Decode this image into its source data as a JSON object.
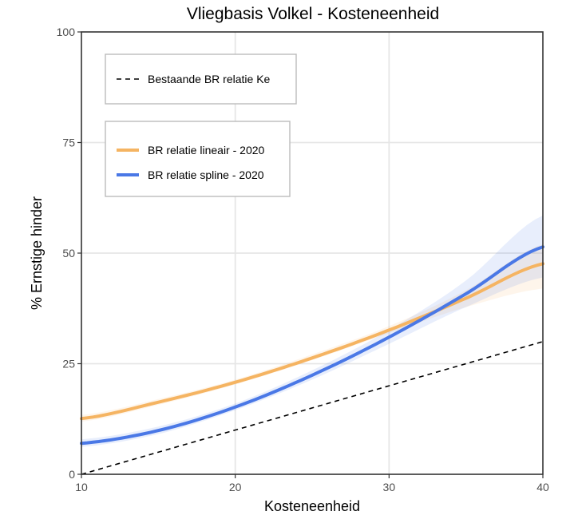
{
  "chart_data": {
    "type": "line",
    "title": "Vliegbasis Volkel - Kosteneenheid",
    "xlabel": "Kosteneenheid",
    "ylabel": "% Ernstige hinder",
    "xlim": [
      10,
      40
    ],
    "ylim": [
      0,
      100
    ],
    "xticks": [
      10,
      20,
      30,
      40
    ],
    "yticks": [
      0,
      25,
      50,
      75,
      100
    ],
    "grid": true,
    "legend": [
      {
        "box": "top",
        "entries": [
          {
            "label": "Bestaande BR relatie Ke",
            "style": "dashed",
            "color": "#000000"
          }
        ]
      },
      {
        "box": "bottom",
        "entries": [
          {
            "label": "BR relatie lineair - 2020",
            "style": "solid",
            "color": "#F5B462"
          },
          {
            "label": "BR relatie spline - 2020",
            "style": "solid",
            "color": "#4A78E6"
          }
        ]
      }
    ],
    "series": [
      {
        "name": "Bestaande BR relatie Ke",
        "color": "#000000",
        "style": "dashed",
        "x": [
          10,
          40
        ],
        "y": [
          0,
          30
        ]
      },
      {
        "name": "BR relatie lineair - 2020",
        "color": "#F5B462",
        "style": "solid",
        "x": [
          10,
          15,
          20,
          25,
          30,
          35,
          40
        ],
        "y": [
          12.6,
          16.3,
          20.8,
          26.3,
          32.6,
          39.8,
          47.6
        ],
        "lower": [
          11.9,
          15.7,
          20.3,
          25.8,
          31.9,
          37.8,
          42.0
        ],
        "upper": [
          13.4,
          17.0,
          21.4,
          27.1,
          33.5,
          41.6,
          52.0
        ]
      },
      {
        "name": "BR relatie spline - 2020",
        "color": "#4A78E6",
        "style": "solid",
        "x": [
          10,
          15,
          20,
          25,
          30,
          35,
          40
        ],
        "y": [
          7.0,
          9.9,
          15.2,
          22.4,
          31.0,
          40.8,
          51.4
        ],
        "lower": [
          6.2,
          9.1,
          14.5,
          21.4,
          29.5,
          37.8,
          44.5
        ],
        "upper": [
          7.9,
          10.8,
          16.0,
          23.5,
          32.6,
          43.8,
          58.5
        ]
      }
    ]
  }
}
